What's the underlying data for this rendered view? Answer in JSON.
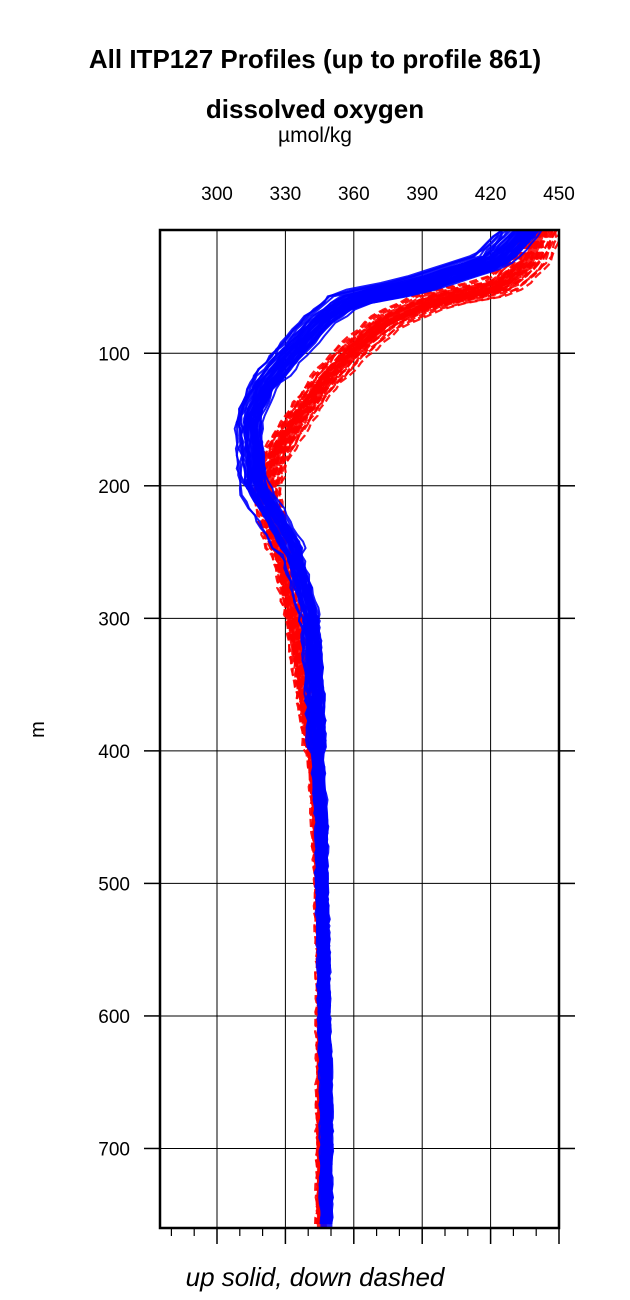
{
  "title": "All ITP127 Profiles (up to profile 861)",
  "chart_data": {
    "type": "line",
    "title": "dissolved oxygen",
    "xlabel": "µmol/kg",
    "ylabel": "m",
    "caption": "up solid, down dashed",
    "xlim": [
      275,
      450
    ],
    "ylim": [
      7,
      760
    ],
    "y_inverted": true,
    "x_axis_position": "top",
    "x_ticks": [
      300,
      330,
      360,
      390,
      420,
      450
    ],
    "y_ticks": [
      100,
      200,
      300,
      400,
      500,
      600,
      700
    ],
    "grid": true,
    "colors": {
      "up": "#0000ff",
      "down": "#ff0000"
    },
    "series": [
      {
        "direction": "up",
        "style": "solid",
        "core": {
          "depth": [
            7,
            30,
            50,
            60,
            75,
            100,
            125,
            150,
            175,
            200,
            225,
            250,
            300,
            350,
            400,
            450,
            500,
            550,
            600,
            650,
            700,
            760
          ],
          "oxygen": [
            434,
            421,
            385,
            357,
            345,
            332,
            320,
            314,
            315,
            316,
            325,
            333,
            341,
            343,
            344,
            346,
            346,
            347,
            347,
            348,
            348,
            348
          ]
        }
      },
      {
        "direction": "down",
        "style": "dashed",
        "core": {
          "depth": [
            7,
            30,
            50,
            60,
            75,
            100,
            125,
            150,
            175,
            200,
            225,
            250,
            300,
            350,
            400,
            450,
            500,
            550,
            600,
            650,
            700,
            760
          ],
          "oxygen": [
            442,
            437,
            424,
            395,
            375,
            358,
            345,
            335,
            326,
            322,
            324,
            328,
            334,
            338,
            342,
            344,
            345,
            346,
            346,
            346,
            346,
            346
          ]
        }
      }
    ]
  }
}
